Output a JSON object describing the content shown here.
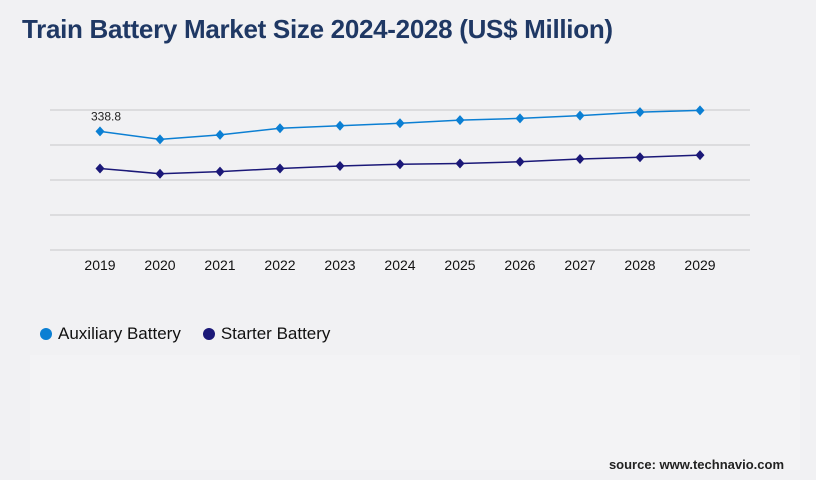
{
  "title": "Train Battery Market Size 2024-2028 (US$ Million)",
  "source": "source: www.technavio.com",
  "chart_data": {
    "type": "line",
    "title": "Train Battery Market Size 2024-2028 (US$ Million)",
    "categories": [
      "2019",
      "2020",
      "2021",
      "2022",
      "2023",
      "2024",
      "2025",
      "2026",
      "2027",
      "2028",
      "2029"
    ],
    "ylim": [
      0,
      400
    ],
    "grid": true,
    "legend_position": "bottom-left",
    "series": [
      {
        "name": "Auxiliary Battery",
        "color": "#0b7fd3",
        "values": [
          338.8,
          316,
          329,
          348,
          355,
          362,
          371,
          376,
          384,
          394,
          399
        ],
        "data_labels": [
          "338.8",
          "",
          "",
          "",
          "",
          "",
          "",
          "",
          "",
          "",
          ""
        ]
      },
      {
        "name": "Starter Battery",
        "color": "#1b1878",
        "values": [
          233,
          218,
          224,
          233,
          240,
          245,
          247,
          252,
          260,
          265,
          271
        ],
        "data_labels": [
          "",
          "",
          "",
          "",
          "",
          "",
          "",
          "",
          "",
          "",
          ""
        ]
      }
    ]
  }
}
